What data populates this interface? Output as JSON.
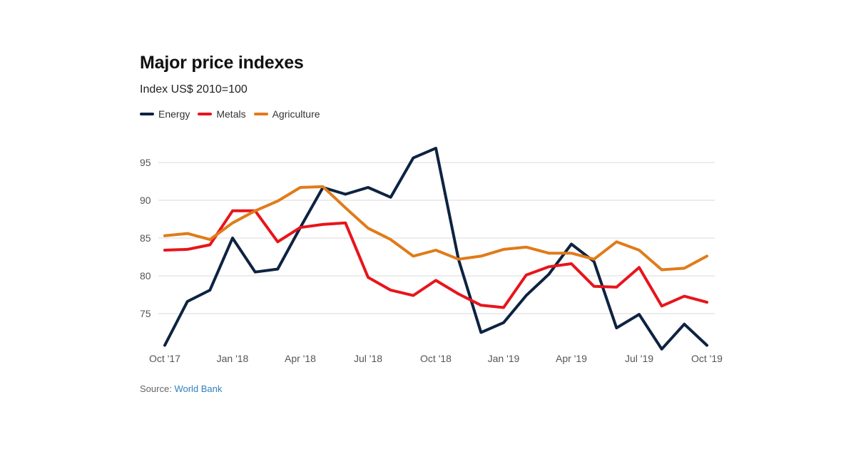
{
  "header": {
    "title": "Major price indexes",
    "subtitle": "Index US$ 2010=100"
  },
  "footer": {
    "source_label": "Source:",
    "source_link": "World Bank"
  },
  "chart_data": {
    "type": "line",
    "title": "Major price indexes",
    "subtitle": "Index US$ 2010=100",
    "xlabel": "",
    "ylabel": "",
    "categories": [
      "Oct '17",
      "Nov '17",
      "Dec '17",
      "Jan '18",
      "Feb '18",
      "Mar '18",
      "Apr '18",
      "May '18",
      "Jun '18",
      "Jul '18",
      "Aug '18",
      "Sep '18",
      "Oct '18",
      "Nov '18",
      "Dec '18",
      "Jan '19",
      "Feb '19",
      "Mar '19",
      "Apr '19",
      "May '19",
      "Jun '19",
      "Jul '19",
      "Aug '19",
      "Sep '19",
      "Oct '19"
    ],
    "x_tick_labels": [
      "Oct '17",
      "",
      "",
      "Jan '18",
      "",
      "",
      "Apr '18",
      "",
      "",
      "Jul '18",
      "",
      "",
      "Oct '18",
      "",
      "",
      "Jan '19",
      "",
      "",
      "Apr '19",
      "",
      "",
      "Jul '19",
      "",
      "",
      "Oct '19"
    ],
    "y_ticks": [
      75,
      80,
      85,
      90,
      95
    ],
    "ylim": [
      70,
      97
    ],
    "grid": true,
    "legend_position": "top-left",
    "series": [
      {
        "name": "Energy",
        "color": "#0d2340",
        "values": [
          70.8,
          76.6,
          78.1,
          85.0,
          80.5,
          80.9,
          86.4,
          91.7,
          90.8,
          91.7,
          90.4,
          95.6,
          96.9,
          82.2,
          72.5,
          73.8,
          77.4,
          80.2,
          84.2,
          81.9,
          73.1,
          74.9,
          70.3,
          73.6,
          70.8
        ]
      },
      {
        "name": "Metals",
        "color": "#e8141b",
        "values": [
          83.4,
          83.5,
          84.1,
          88.6,
          88.6,
          84.5,
          86.4,
          86.8,
          87.0,
          79.8,
          78.1,
          77.4,
          79.4,
          77.6,
          76.1,
          75.8,
          80.1,
          81.2,
          81.6,
          78.6,
          78.5,
          81.1,
          76.0,
          77.3,
          76.5
        ]
      },
      {
        "name": "Agriculture",
        "color": "#e07b1a",
        "values": [
          85.3,
          85.6,
          84.8,
          87.0,
          88.6,
          89.9,
          91.7,
          91.8,
          89.0,
          86.3,
          84.8,
          82.6,
          83.4,
          82.2,
          82.6,
          83.5,
          83.8,
          83.0,
          83.0,
          82.2,
          84.5,
          83.4,
          80.8,
          81.0,
          82.6
        ]
      }
    ]
  }
}
